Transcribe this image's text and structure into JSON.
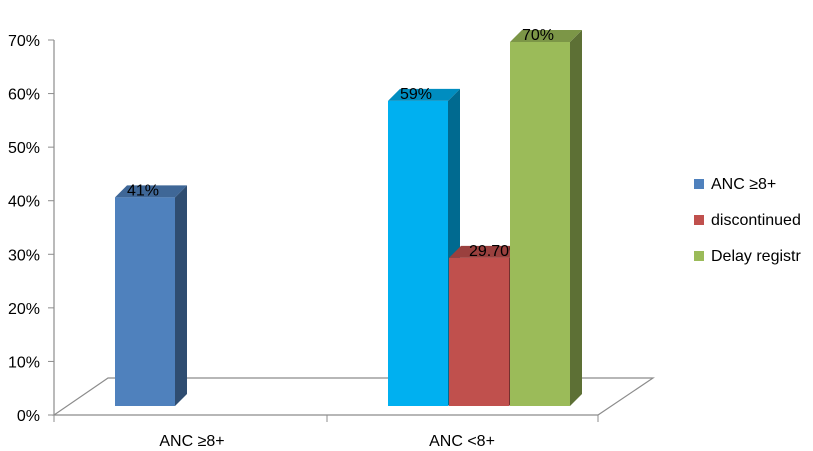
{
  "chart_data": {
    "type": "bar",
    "style": "3d-clustered-column",
    "categories": [
      "ANC ≥8+",
      "ANC <8+"
    ],
    "ylim": [
      0,
      0.7
    ],
    "yticks": [
      0,
      0.1,
      0.2,
      0.3,
      0.4,
      0.5,
      0.6,
      0.7
    ],
    "ytick_labels": [
      "0%",
      "10%",
      "20%",
      "30%",
      "40%",
      "50%",
      "60%",
      "70%"
    ],
    "legend_position": "right",
    "legend": [
      {
        "label": "ANC ≥8+",
        "color": "#4f81bd"
      },
      {
        "label": "discontinued",
        "color": "#c0504d"
      },
      {
        "label": "Delay registr",
        "color": "#9bbb59"
      }
    ],
    "bars": [
      {
        "category": "ANC ≥8+",
        "value": 0.41,
        "label": "41%",
        "color": "#4f81bd"
      },
      {
        "category": "ANC <8+",
        "value": 0.59,
        "label": "59%",
        "color": "#00b0f0"
      },
      {
        "category": "ANC <8+",
        "value": 0.297,
        "label": "29.70%",
        "color": "#c0504d"
      },
      {
        "category": "ANC <8+",
        "value": 0.7,
        "label": "70%",
        "color": "#9bbb59"
      }
    ]
  }
}
